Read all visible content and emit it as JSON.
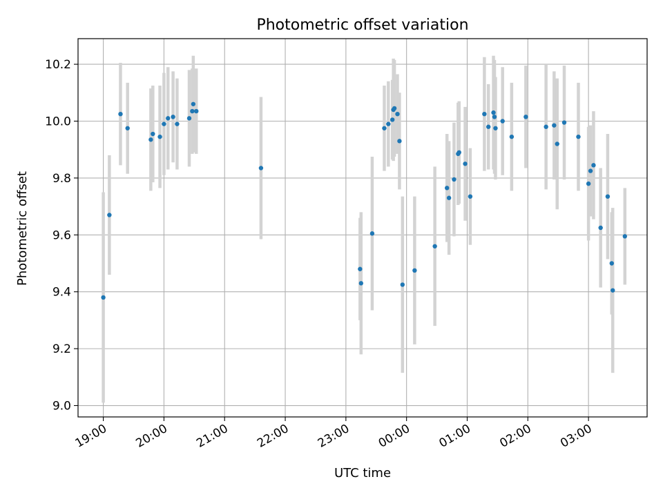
{
  "chart_data": {
    "type": "scatter",
    "title": "Photometric offset variation",
    "xlabel": "UTC time",
    "ylabel": "Photometric offset",
    "xlim_minutes": [
      -25,
      538
    ],
    "ylim": [
      8.96,
      10.29
    ],
    "grid": true,
    "x_tick_minutes": [
      0,
      60,
      120,
      180,
      240,
      300,
      360,
      420,
      480
    ],
    "x_tick_labels": [
      "19:00",
      "20:00",
      "21:00",
      "22:00",
      "23:00",
      "00:00",
      "01:00",
      "02:00",
      "03:00"
    ],
    "y_ticks": [
      9.0,
      9.2,
      9.4,
      9.6,
      9.8,
      10.0,
      10.2
    ],
    "y_tick_labels": [
      "9.0",
      "9.2",
      "9.4",
      "9.6",
      "9.8",
      "10.0",
      "10.2"
    ],
    "point_color": "#1f77b4",
    "errorbar_color": "#d3d3d3",
    "x_unit": "minutes after 19:00 UTC",
    "points": [
      {
        "x": 0,
        "y": 9.38,
        "err": 0.37
      },
      {
        "x": 6,
        "y": 9.67,
        "err": 0.21
      },
      {
        "x": 17,
        "y": 10.025,
        "err": 0.18
      },
      {
        "x": 24,
        "y": 9.975,
        "err": 0.16
      },
      {
        "x": 47,
        "y": 9.935,
        "err": 0.18
      },
      {
        "x": 49,
        "y": 9.955,
        "err": 0.17
      },
      {
        "x": 56,
        "y": 9.945,
        "err": 0.18
      },
      {
        "x": 60,
        "y": 9.99,
        "err": 0.18
      },
      {
        "x": 64,
        "y": 10.01,
        "err": 0.18
      },
      {
        "x": 69,
        "y": 10.015,
        "err": 0.16
      },
      {
        "x": 73,
        "y": 9.99,
        "err": 0.16
      },
      {
        "x": 85,
        "y": 10.01,
        "err": 0.17
      },
      {
        "x": 88,
        "y": 10.035,
        "err": 0.15
      },
      {
        "x": 89,
        "y": 10.06,
        "err": 0.17
      },
      {
        "x": 92,
        "y": 10.035,
        "err": 0.15
      },
      {
        "x": 156,
        "y": 9.835,
        "err": 0.25
      },
      {
        "x": 254,
        "y": 9.48,
        "err": 0.18
      },
      {
        "x": 255,
        "y": 9.43,
        "err": 0.25
      },
      {
        "x": 266,
        "y": 9.605,
        "err": 0.27
      },
      {
        "x": 278,
        "y": 9.975,
        "err": 0.15
      },
      {
        "x": 282,
        "y": 9.99,
        "err": 0.15
      },
      {
        "x": 286,
        "y": 10.005,
        "err": 0.14
      },
      {
        "x": 287,
        "y": 10.04,
        "err": 0.18
      },
      {
        "x": 288,
        "y": 10.045,
        "err": 0.17
      },
      {
        "x": 291,
        "y": 10.025,
        "err": 0.14
      },
      {
        "x": 293,
        "y": 9.93,
        "err": 0.17
      },
      {
        "x": 296,
        "y": 9.425,
        "err": 0.31
      },
      {
        "x": 308,
        "y": 9.475,
        "err": 0.26
      },
      {
        "x": 328,
        "y": 9.56,
        "err": 0.28
      },
      {
        "x": 340,
        "y": 9.765,
        "err": 0.19
      },
      {
        "x": 342,
        "y": 9.73,
        "err": 0.2
      },
      {
        "x": 347,
        "y": 9.795,
        "err": 0.2
      },
      {
        "x": 351,
        "y": 9.885,
        "err": 0.18
      },
      {
        "x": 352,
        "y": 9.89,
        "err": 0.18
      },
      {
        "x": 358,
        "y": 9.85,
        "err": 0.2
      },
      {
        "x": 363,
        "y": 9.735,
        "err": 0.17
      },
      {
        "x": 377,
        "y": 10.025,
        "err": 0.2
      },
      {
        "x": 381,
        "y": 9.98,
        "err": 0.15
      },
      {
        "x": 386,
        "y": 10.03,
        "err": 0.2
      },
      {
        "x": 387,
        "y": 10.015,
        "err": 0.2
      },
      {
        "x": 388,
        "y": 9.975,
        "err": 0.18
      },
      {
        "x": 395,
        "y": 10.0,
        "err": 0.19
      },
      {
        "x": 404,
        "y": 9.945,
        "err": 0.19
      },
      {
        "x": 418,
        "y": 10.015,
        "err": 0.18
      },
      {
        "x": 438,
        "y": 9.98,
        "err": 0.22
      },
      {
        "x": 446,
        "y": 9.985,
        "err": 0.19
      },
      {
        "x": 449,
        "y": 9.92,
        "err": 0.23
      },
      {
        "x": 456,
        "y": 9.995,
        "err": 0.2
      },
      {
        "x": 470,
        "y": 9.945,
        "err": 0.19
      },
      {
        "x": 480,
        "y": 9.78,
        "err": 0.2
      },
      {
        "x": 482,
        "y": 9.825,
        "err": 0.16
      },
      {
        "x": 485,
        "y": 9.845,
        "err": 0.19
      },
      {
        "x": 492,
        "y": 9.625,
        "err": 0.21
      },
      {
        "x": 499,
        "y": 9.735,
        "err": 0.22
      },
      {
        "x": 503,
        "y": 9.5,
        "err": 0.18
      },
      {
        "x": 504,
        "y": 9.405,
        "err": 0.29
      },
      {
        "x": 516,
        "y": 9.595,
        "err": 0.17
      }
    ]
  }
}
